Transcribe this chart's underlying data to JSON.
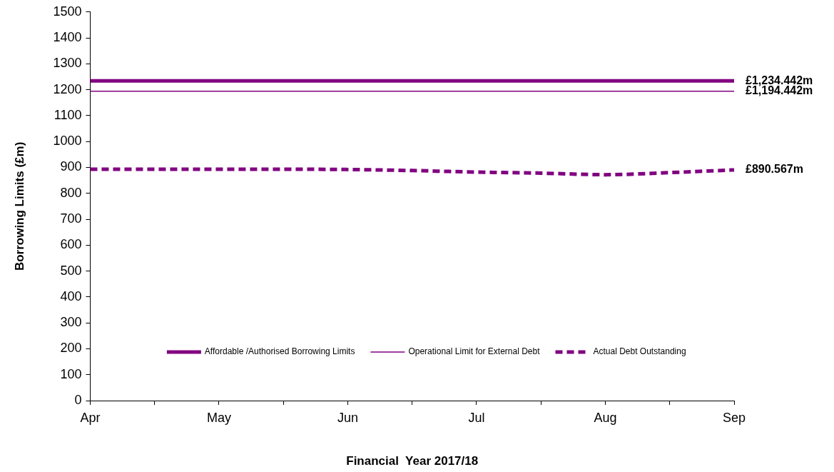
{
  "chart_data": {
    "type": "line",
    "xlabel": "Financial  Year 2017/18",
    "ylabel": "Borrowing Limits (£m)",
    "categories": [
      "Apr",
      null,
      "May",
      null,
      "Jun",
      null,
      "Jul",
      null,
      "Aug",
      null,
      "Sep"
    ],
    "ylim": [
      0,
      1500
    ],
    "yticks": [
      0,
      100,
      200,
      300,
      400,
      500,
      600,
      700,
      800,
      900,
      1000,
      1100,
      1200,
      1300,
      1400,
      1500
    ],
    "grid": false,
    "legend": "bottom",
    "marker": "none",
    "series": [
      {
        "name": "Affordable /Authorised Borrowing Limits",
        "color": "#800080",
        "values": [
          1234.442,
          1234.442,
          1234.442,
          1234.442,
          1234.442,
          1234.442,
          1234.442,
          1234.442,
          1234.442,
          1234.442,
          1234.442
        ],
        "line_style": "solid"
      },
      {
        "name": "Operational Limit for External Debt",
        "color": "#800080",
        "values": [
          1194.442,
          1194.442,
          1194.442,
          1194.442,
          1194.442,
          1194.442,
          1194.442,
          1194.442,
          1194.442,
          1194.442,
          1194.442
        ],
        "line_style": "solid"
      },
      {
        "name": "Actual Debt Outstanding",
        "color": "#800080",
        "values": [
          893,
          893,
          893,
          893,
          892,
          888,
          882,
          878,
          872,
          880,
          890.567
        ],
        "line_style": "dashed"
      }
    ],
    "annotations": [
      "£1,234.442m",
      "£1,194.442m",
      "£890.567m"
    ]
  }
}
